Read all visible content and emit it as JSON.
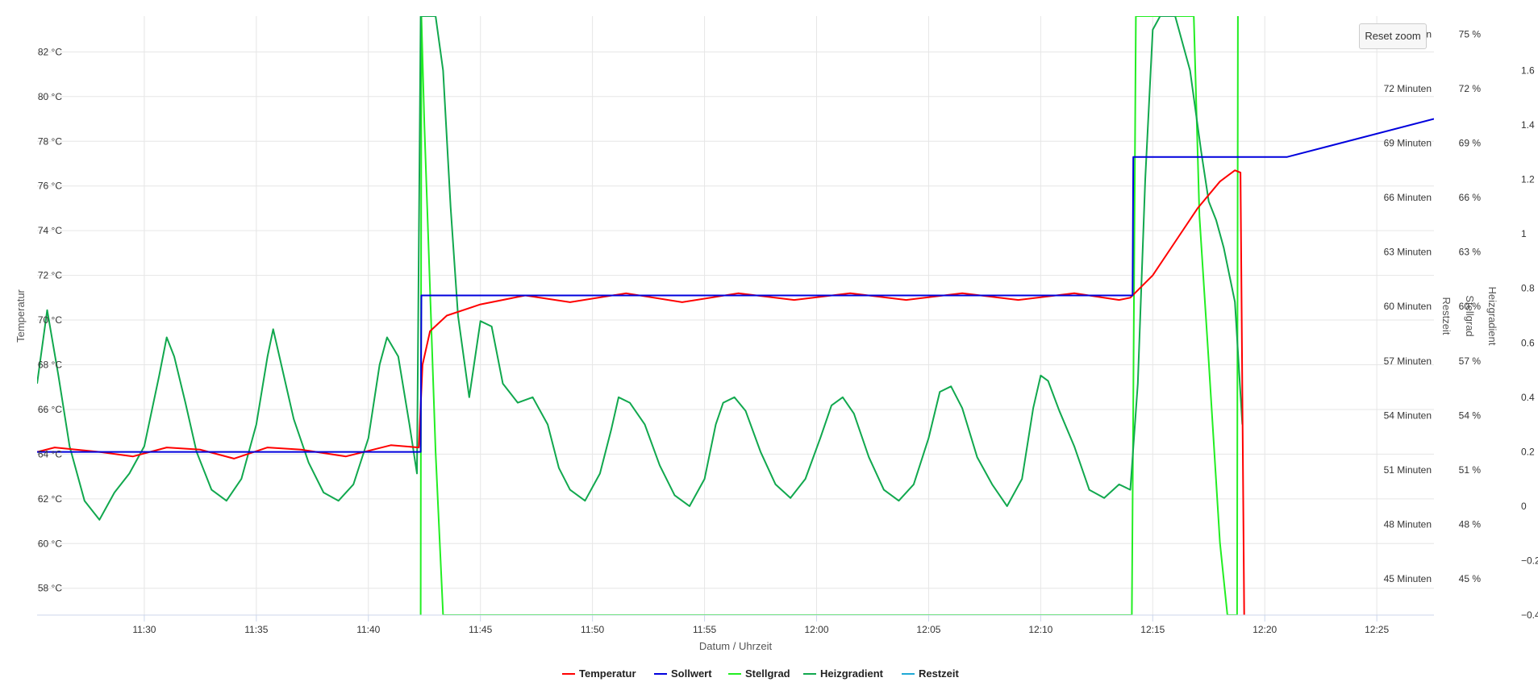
{
  "reset_zoom_label": "Reset zoom",
  "chart_data": {
    "type": "line",
    "title": "",
    "xlabel": "Datum / Uhrzeit",
    "x_ticks": [
      "11:30",
      "11:35",
      "11:40",
      "11:45",
      "11:50",
      "11:55",
      "12:00",
      "12:05",
      "12:10",
      "12:15",
      "12:20",
      "12:25"
    ],
    "xlim": [
      "11:25:13",
      "12:27:33"
    ],
    "grid": true,
    "legend_position": "bottom-center",
    "axes": [
      {
        "id": "temperature",
        "label": "Temperatur",
        "side": "left",
        "min": 56.8,
        "max": 83.6,
        "ticks": [
          "82 °C",
          "80 °C",
          "78 °C",
          "76 °C",
          "74 °C",
          "72 °C",
          "70 °C",
          "68 °C",
          "66 °C",
          "64 °C",
          "62 °C",
          "60 °C",
          "58 °C"
        ]
      },
      {
        "id": "restzeit",
        "label": "Restzeit",
        "side": "right",
        "min": 43,
        "max": 76,
        "ticks": [
          "75 Minuten",
          "72 Minuten",
          "69 Minuten",
          "66 Minuten",
          "63 Minuten",
          "60 Minuten",
          "57 Minuten",
          "54 Minuten",
          "51 Minuten",
          "48 Minuten",
          "45 Minuten"
        ]
      },
      {
        "id": "stellgrad",
        "label": "Stellgrad",
        "side": "right",
        "min": 43,
        "max": 76,
        "ticks": [
          "75 %",
          "72 %",
          "69 %",
          "66 %",
          "63 %",
          "60 %",
          "57 %",
          "54 %",
          "51 %",
          "48 %",
          "45 %"
        ]
      },
      {
        "id": "heizgradient",
        "label": "Heizgradient",
        "side": "right",
        "min": -0.4,
        "max": 1.8,
        "ticks": [
          "1.6",
          "1.4",
          "1.2",
          "1",
          "0.8",
          "0.6",
          "0.4",
          "0.2",
          "0",
          "−0.2",
          "−0.4"
        ]
      }
    ],
    "series": [
      {
        "name": "Temperatur",
        "color": "#ff0000",
        "axis": "temperature",
        "points": [
          [
            "11:25:13",
            64.1
          ],
          [
            "11:26:00",
            64.3
          ],
          [
            "11:28:00",
            64.1
          ],
          [
            "11:29:30",
            63.9
          ],
          [
            "11:31:00",
            64.3
          ],
          [
            "11:32:30",
            64.2
          ],
          [
            "11:34:00",
            63.8
          ],
          [
            "11:35:30",
            64.3
          ],
          [
            "11:37:00",
            64.2
          ],
          [
            "11:39:00",
            63.9
          ],
          [
            "11:41:00",
            64.4
          ],
          [
            "11:42:15",
            64.3
          ],
          [
            "11:42:25",
            68.0
          ],
          [
            "11:42:45",
            69.5
          ],
          [
            "11:43:30",
            70.2
          ],
          [
            "11:45:00",
            70.7
          ],
          [
            "11:47:00",
            71.1
          ],
          [
            "11:49:00",
            70.8
          ],
          [
            "11:51:30",
            71.2
          ],
          [
            "11:54:00",
            70.8
          ],
          [
            "11:56:30",
            71.2
          ],
          [
            "11:59:00",
            70.9
          ],
          [
            "12:01:30",
            71.2
          ],
          [
            "12:04:00",
            70.9
          ],
          [
            "12:06:30",
            71.2
          ],
          [
            "12:09:00",
            70.9
          ],
          [
            "12:11:30",
            71.2
          ],
          [
            "12:13:30",
            70.9
          ],
          [
            "12:14:00",
            71.0
          ],
          [
            "12:15:00",
            72.0
          ],
          [
            "12:16:00",
            73.5
          ],
          [
            "12:17:00",
            75.0
          ],
          [
            "12:18:00",
            76.2
          ],
          [
            "12:18:40",
            76.7
          ],
          [
            "12:18:55",
            76.6
          ],
          [
            "12:19:05",
            56.8
          ]
        ]
      },
      {
        "name": "Sollwert",
        "color": "#0000dd",
        "axis": "temperature",
        "points": [
          [
            "11:25:13",
            64.1
          ],
          [
            "11:42:20",
            64.1
          ],
          [
            "11:42:22",
            71.1
          ],
          [
            "12:14:06",
            71.1
          ],
          [
            "12:14:08",
            77.3
          ],
          [
            "12:21:00",
            77.3
          ],
          [
            "12:27:33",
            79.0
          ]
        ]
      },
      {
        "name": "Stellgrad",
        "color": "#22ee22",
        "axis": "stellgrad",
        "points": [
          [
            "11:42:20",
            43
          ],
          [
            "11:42:22",
            76
          ],
          [
            "11:42:30",
            70
          ],
          [
            "11:43:00",
            52
          ],
          [
            "11:43:20",
            43
          ],
          [
            "12:14:04",
            43
          ],
          [
            "12:14:15",
            76
          ],
          [
            "12:16:50",
            76
          ],
          [
            "12:17:05",
            65
          ],
          [
            "12:17:30",
            57
          ],
          [
            "12:18:00",
            47
          ],
          [
            "12:18:20",
            43
          ],
          [
            "12:18:46",
            43
          ],
          [
            "12:18:48",
            76
          ]
        ]
      },
      {
        "name": "Heizgradient",
        "color": "#11a84e",
        "axis": "heizgradient",
        "points": [
          [
            "11:25:13",
            0.45
          ],
          [
            "11:25:40",
            0.72
          ],
          [
            "11:26:10",
            0.48
          ],
          [
            "11:26:40",
            0.22
          ],
          [
            "11:27:20",
            0.02
          ],
          [
            "11:28:00",
            -0.05
          ],
          [
            "11:28:40",
            0.05
          ],
          [
            "11:29:20",
            0.12
          ],
          [
            "11:30:00",
            0.22
          ],
          [
            "11:30:40",
            0.48
          ],
          [
            "11:31:00",
            0.62
          ],
          [
            "11:31:20",
            0.55
          ],
          [
            "11:31:50",
            0.38
          ],
          [
            "11:32:20",
            0.2
          ],
          [
            "11:33:00",
            0.06
          ],
          [
            "11:33:40",
            0.02
          ],
          [
            "11:34:20",
            0.1
          ],
          [
            "11:35:00",
            0.3
          ],
          [
            "11:35:30",
            0.55
          ],
          [
            "11:35:45",
            0.65
          ],
          [
            "11:36:10",
            0.5
          ],
          [
            "11:36:40",
            0.32
          ],
          [
            "11:37:20",
            0.16
          ],
          [
            "11:38:00",
            0.05
          ],
          [
            "11:38:40",
            0.02
          ],
          [
            "11:39:20",
            0.08
          ],
          [
            "11:40:00",
            0.25
          ],
          [
            "11:40:30",
            0.52
          ],
          [
            "11:40:50",
            0.62
          ],
          [
            "11:41:20",
            0.55
          ],
          [
            "11:41:50",
            0.3
          ],
          [
            "11:42:10",
            0.12
          ],
          [
            "11:42:20",
            1.8
          ],
          [
            "11:43:00",
            1.8
          ],
          [
            "11:43:20",
            1.6
          ],
          [
            "11:43:40",
            1.1
          ],
          [
            "11:44:00",
            0.7
          ],
          [
            "11:44:30",
            0.4
          ],
          [
            "11:45:00",
            0.68
          ],
          [
            "11:45:30",
            0.66
          ],
          [
            "11:46:00",
            0.45
          ],
          [
            "11:46:40",
            0.38
          ],
          [
            "11:47:20",
            0.4
          ],
          [
            "11:48:00",
            0.3
          ],
          [
            "11:48:30",
            0.14
          ],
          [
            "11:49:00",
            0.06
          ],
          [
            "11:49:40",
            0.02
          ],
          [
            "11:50:20",
            0.12
          ],
          [
            "11:50:50",
            0.28
          ],
          [
            "11:51:10",
            0.4
          ],
          [
            "11:51:40",
            0.38
          ],
          [
            "11:52:20",
            0.3
          ],
          [
            "11:53:00",
            0.15
          ],
          [
            "11:53:40",
            0.04
          ],
          [
            "11:54:20",
            0.0
          ],
          [
            "11:55:00",
            0.1
          ],
          [
            "11:55:30",
            0.3
          ],
          [
            "11:55:50",
            0.38
          ],
          [
            "11:56:20",
            0.4
          ],
          [
            "11:56:50",
            0.35
          ],
          [
            "11:57:30",
            0.2
          ],
          [
            "11:58:10",
            0.08
          ],
          [
            "11:58:50",
            0.03
          ],
          [
            "11:59:30",
            0.1
          ],
          [
            "12:00:10",
            0.25
          ],
          [
            "12:00:40",
            0.37
          ],
          [
            "12:01:10",
            0.4
          ],
          [
            "12:01:40",
            0.34
          ],
          [
            "12:02:20",
            0.18
          ],
          [
            "12:03:00",
            0.06
          ],
          [
            "12:03:40",
            0.02
          ],
          [
            "12:04:20",
            0.08
          ],
          [
            "12:05:00",
            0.25
          ],
          [
            "12:05:30",
            0.42
          ],
          [
            "12:06:00",
            0.44
          ],
          [
            "12:06:30",
            0.36
          ],
          [
            "12:07:10",
            0.18
          ],
          [
            "12:07:50",
            0.08
          ],
          [
            "12:08:30",
            0.0
          ],
          [
            "12:09:10",
            0.1
          ],
          [
            "12:09:40",
            0.36
          ],
          [
            "12:10:00",
            0.48
          ],
          [
            "12:10:20",
            0.46
          ],
          [
            "12:10:50",
            0.35
          ],
          [
            "12:11:30",
            0.22
          ],
          [
            "12:12:10",
            0.06
          ],
          [
            "12:12:50",
            0.03
          ],
          [
            "12:13:30",
            0.08
          ],
          [
            "12:14:00",
            0.06
          ],
          [
            "12:14:20",
            0.45
          ],
          [
            "12:14:40",
            1.2
          ],
          [
            "12:15:00",
            1.75
          ],
          [
            "12:15:20",
            1.8
          ],
          [
            "12:16:00",
            1.8
          ],
          [
            "12:16:40",
            1.6
          ],
          [
            "12:17:10",
            1.3
          ],
          [
            "12:17:30",
            1.12
          ],
          [
            "12:17:50",
            1.05
          ],
          [
            "12:18:10",
            0.95
          ],
          [
            "12:18:40",
            0.75
          ],
          [
            "12:19:00",
            0.3
          ]
        ]
      },
      {
        "name": "Restzeit",
        "color": "#1fa9d6",
        "axis": "restzeit",
        "points": []
      }
    ]
  }
}
